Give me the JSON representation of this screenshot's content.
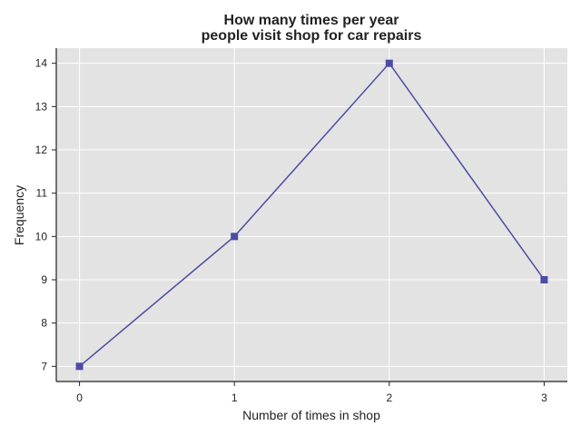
{
  "chart_data": {
    "type": "line",
    "title_lines": [
      "How many times per year",
      "people visit shop for car repairs"
    ],
    "xlabel": "Number of times in shop",
    "ylabel": "Frequency",
    "x": [
      0,
      1,
      2,
      3
    ],
    "xticks": [
      "0",
      "1",
      "2",
      "3"
    ],
    "series": [
      {
        "values": [
          7,
          10,
          14,
          9
        ],
        "color": "#4c4ca6",
        "marker": "square"
      }
    ],
    "yticks": [
      "7",
      "8",
      "9",
      "10",
      "11",
      "12",
      "13",
      "14"
    ],
    "xlim": [
      -0.15,
      3.15
    ],
    "ylim": [
      6.65,
      14.35
    ],
    "grid": true,
    "plot_background": "#e3e3e3",
    "grid_color": "#ffffff"
  }
}
